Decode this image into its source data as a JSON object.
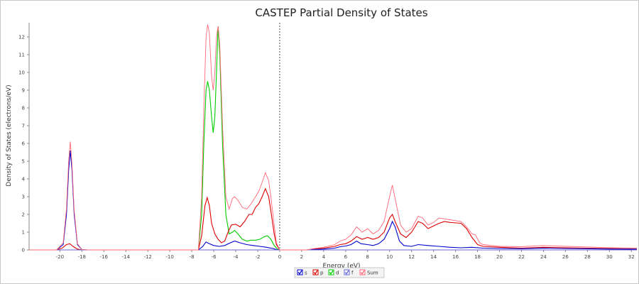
{
  "chart_data": {
    "type": "line",
    "title": "CASTEP Partial  Density of States",
    "xlabel": "Energy (eV)",
    "ylabel": "Density of States (electrons/eV)",
    "xlim": [
      -22.8,
      32.5
    ],
    "ylim": [
      0,
      12.8
    ],
    "xticks": [
      "-20",
      "-18",
      "-16",
      "-14",
      "-12",
      "-10",
      "-8",
      "-6",
      "-4",
      "-2",
      "0",
      "2",
      "4",
      "6",
      "8",
      "10",
      "12",
      "14",
      "16",
      "18",
      "20",
      "22",
      "24",
      "26",
      "28",
      "30",
      "32"
    ],
    "yticks": [
      "0",
      "1",
      "2",
      "3",
      "4",
      "5",
      "6",
      "7",
      "8",
      "9",
      "10",
      "11",
      "12"
    ],
    "fermi_level": 0,
    "grid": false,
    "legend_position": "bottom-center",
    "series": [
      {
        "name": "s",
        "color": "#0000cc",
        "points": [
          [
            -22.8,
            0
          ],
          [
            -20.3,
            0
          ],
          [
            -19.7,
            0.3
          ],
          [
            -19.4,
            2.0
          ],
          [
            -19.2,
            4.5
          ],
          [
            -19.05,
            5.6
          ],
          [
            -18.9,
            4.5
          ],
          [
            -18.7,
            2.0
          ],
          [
            -18.4,
            0.3
          ],
          [
            -18.0,
            0.02
          ],
          [
            -17.5,
            0
          ],
          [
            -7.4,
            0
          ],
          [
            -7.0,
            0.2
          ],
          [
            -6.7,
            0.45
          ],
          [
            -6.4,
            0.35
          ],
          [
            -6.0,
            0.25
          ],
          [
            -5.5,
            0.2
          ],
          [
            -5.0,
            0.25
          ],
          [
            -4.5,
            0.4
          ],
          [
            -4.1,
            0.5
          ],
          [
            -3.6,
            0.4
          ],
          [
            -3.0,
            0.3
          ],
          [
            -2.4,
            0.25
          ],
          [
            -1.8,
            0.2
          ],
          [
            -1.2,
            0.15
          ],
          [
            -0.6,
            0.08
          ],
          [
            -0.3,
            0.02
          ],
          [
            0,
            0
          ],
          [
            2.5,
            0
          ],
          [
            3.0,
            0.02
          ],
          [
            4.0,
            0.05
          ],
          [
            5.0,
            0.1
          ],
          [
            5.5,
            0.18
          ],
          [
            6.0,
            0.22
          ],
          [
            6.5,
            0.3
          ],
          [
            7.0,
            0.5
          ],
          [
            7.4,
            0.35
          ],
          [
            8.0,
            0.3
          ],
          [
            8.5,
            0.25
          ],
          [
            9.0,
            0.35
          ],
          [
            9.5,
            0.6
          ],
          [
            10.0,
            1.2
          ],
          [
            10.25,
            1.6
          ],
          [
            10.5,
            1.3
          ],
          [
            10.9,
            0.5
          ],
          [
            11.3,
            0.25
          ],
          [
            12.0,
            0.2
          ],
          [
            12.6,
            0.3
          ],
          [
            13.5,
            0.25
          ],
          [
            14.5,
            0.2
          ],
          [
            15.5,
            0.15
          ],
          [
            16.5,
            0.12
          ],
          [
            17.5,
            0.15
          ],
          [
            18.5,
            0.1
          ],
          [
            20,
            0.08
          ],
          [
            22,
            0.07
          ],
          [
            24,
            0.1
          ],
          [
            26,
            0.08
          ],
          [
            28,
            0.07
          ],
          [
            30,
            0.05
          ],
          [
            32.5,
            0.04
          ]
        ]
      },
      {
        "name": "p",
        "color": "#dd0000",
        "points": [
          [
            -22.8,
            0
          ],
          [
            -20.3,
            0
          ],
          [
            -19.8,
            0.1
          ],
          [
            -19.4,
            0.3
          ],
          [
            -19.1,
            0.35
          ],
          [
            -18.8,
            0.2
          ],
          [
            -18.4,
            0.05
          ],
          [
            -18.0,
            0
          ],
          [
            -7.4,
            0
          ],
          [
            -7.1,
            0.8
          ],
          [
            -6.8,
            2.5
          ],
          [
            -6.6,
            2.95
          ],
          [
            -6.4,
            2.5
          ],
          [
            -6.2,
            1.5
          ],
          [
            -5.9,
            0.9
          ],
          [
            -5.6,
            0.6
          ],
          [
            -5.3,
            0.4
          ],
          [
            -5.0,
            0.5
          ],
          [
            -4.7,
            1.0
          ],
          [
            -4.4,
            1.4
          ],
          [
            -4.0,
            1.45
          ],
          [
            -3.6,
            1.3
          ],
          [
            -3.2,
            1.6
          ],
          [
            -2.8,
            2.0
          ],
          [
            -2.5,
            2.0
          ],
          [
            -2.2,
            2.4
          ],
          [
            -1.9,
            2.6
          ],
          [
            -1.6,
            3.0
          ],
          [
            -1.3,
            3.45
          ],
          [
            -1.0,
            3.0
          ],
          [
            -0.8,
            2.2
          ],
          [
            -0.5,
            0.9
          ],
          [
            -0.3,
            0.3
          ],
          [
            0,
            0
          ],
          [
            2.5,
            0
          ],
          [
            3.0,
            0.05
          ],
          [
            4.0,
            0.1
          ],
          [
            5.0,
            0.2
          ],
          [
            5.5,
            0.3
          ],
          [
            6.0,
            0.35
          ],
          [
            6.5,
            0.5
          ],
          [
            7.0,
            0.75
          ],
          [
            7.5,
            0.6
          ],
          [
            8.0,
            0.7
          ],
          [
            8.5,
            0.6
          ],
          [
            9.0,
            0.7
          ],
          [
            9.5,
            1.0
          ],
          [
            10.0,
            1.8
          ],
          [
            10.25,
            2.0
          ],
          [
            10.5,
            1.6
          ],
          [
            11.0,
            0.9
          ],
          [
            11.5,
            0.7
          ],
          [
            12.0,
            1.0
          ],
          [
            12.6,
            1.6
          ],
          [
            13.0,
            1.5
          ],
          [
            13.5,
            1.2
          ],
          [
            14.0,
            1.35
          ],
          [
            14.5,
            1.5
          ],
          [
            15.0,
            1.6
          ],
          [
            15.5,
            1.55
          ],
          [
            16.5,
            1.5
          ],
          [
            17.0,
            1.2
          ],
          [
            17.5,
            0.7
          ],
          [
            18.0,
            0.3
          ],
          [
            18.5,
            0.2
          ],
          [
            20,
            0.15
          ],
          [
            22,
            0.1
          ],
          [
            24,
            0.15
          ],
          [
            26,
            0.12
          ],
          [
            28,
            0.1
          ],
          [
            30,
            0.08
          ],
          [
            32.5,
            0.05
          ]
        ]
      },
      {
        "name": "d",
        "color": "#00cc00",
        "points": [
          [
            -22.8,
            0
          ],
          [
            -7.4,
            0
          ],
          [
            -7.1,
            2.0
          ],
          [
            -6.9,
            6.0
          ],
          [
            -6.7,
            9.0
          ],
          [
            -6.55,
            9.5
          ],
          [
            -6.4,
            9.0
          ],
          [
            -6.2,
            7.5
          ],
          [
            -6.05,
            6.6
          ],
          [
            -5.9,
            7.5
          ],
          [
            -5.75,
            10.0
          ],
          [
            -5.6,
            12.6
          ],
          [
            -5.45,
            11.0
          ],
          [
            -5.2,
            6.0
          ],
          [
            -4.9,
            2.0
          ],
          [
            -4.6,
            0.9
          ],
          [
            -4.3,
            1.0
          ],
          [
            -4.1,
            1.1
          ],
          [
            -3.8,
            0.9
          ],
          [
            -3.4,
            0.6
          ],
          [
            -3.0,
            0.5
          ],
          [
            -2.6,
            0.55
          ],
          [
            -2.2,
            0.55
          ],
          [
            -1.8,
            0.6
          ],
          [
            -1.4,
            0.75
          ],
          [
            -1.1,
            0.8
          ],
          [
            -0.8,
            0.6
          ],
          [
            -0.5,
            0.25
          ],
          [
            -0.2,
            0.05
          ],
          [
            0,
            0
          ],
          [
            32.5,
            0
          ]
        ]
      },
      {
        "name": "f",
        "color": "#6666dd",
        "points": [
          [
            -22.8,
            0
          ],
          [
            32.5,
            0
          ]
        ]
      },
      {
        "name": "Sum",
        "color": "#ff6677",
        "points": [
          [
            -22.8,
            0
          ],
          [
            -20.3,
            0
          ],
          [
            -19.7,
            0.4
          ],
          [
            -19.4,
            2.3
          ],
          [
            -19.2,
            5.0
          ],
          [
            -19.05,
            6.1
          ],
          [
            -18.9,
            4.8
          ],
          [
            -18.7,
            2.2
          ],
          [
            -18.4,
            0.35
          ],
          [
            -18.0,
            0.02
          ],
          [
            -17.5,
            0
          ],
          [
            -7.4,
            0
          ],
          [
            -7.1,
            3.0
          ],
          [
            -6.9,
            8.0
          ],
          [
            -6.7,
            12.0
          ],
          [
            -6.55,
            12.7
          ],
          [
            -6.4,
            12.2
          ],
          [
            -6.2,
            9.8
          ],
          [
            -6.05,
            9.0
          ],
          [
            -5.9,
            10.0
          ],
          [
            -5.75,
            12.0
          ],
          [
            -5.6,
            12.6
          ],
          [
            -5.45,
            11.5
          ],
          [
            -5.2,
            7.0
          ],
          [
            -4.9,
            3.0
          ],
          [
            -4.6,
            2.3
          ],
          [
            -4.3,
            2.9
          ],
          [
            -4.1,
            3.0
          ],
          [
            -3.8,
            2.8
          ],
          [
            -3.4,
            2.4
          ],
          [
            -3.0,
            2.3
          ],
          [
            -2.6,
            2.6
          ],
          [
            -2.2,
            3.0
          ],
          [
            -1.9,
            3.3
          ],
          [
            -1.6,
            3.8
          ],
          [
            -1.3,
            4.35
          ],
          [
            -1.0,
            3.9
          ],
          [
            -0.8,
            3.0
          ],
          [
            -0.5,
            1.4
          ],
          [
            -0.3,
            0.4
          ],
          [
            0,
            0
          ],
          [
            2.5,
            0
          ],
          [
            3.0,
            0.07
          ],
          [
            4.0,
            0.15
          ],
          [
            5.0,
            0.3
          ],
          [
            5.5,
            0.5
          ],
          [
            6.0,
            0.6
          ],
          [
            6.5,
            0.85
          ],
          [
            7.0,
            1.3
          ],
          [
            7.5,
            1.0
          ],
          [
            8.0,
            1.2
          ],
          [
            8.5,
            0.9
          ],
          [
            9.0,
            1.1
          ],
          [
            9.5,
            1.6
          ],
          [
            10.0,
            3.0
          ],
          [
            10.25,
            3.65
          ],
          [
            10.5,
            2.9
          ],
          [
            11.0,
            1.4
          ],
          [
            11.5,
            1.0
          ],
          [
            12.0,
            1.2
          ],
          [
            12.6,
            1.9
          ],
          [
            13.0,
            1.8
          ],
          [
            13.5,
            1.4
          ],
          [
            14.0,
            1.55
          ],
          [
            14.5,
            1.8
          ],
          [
            15.0,
            1.75
          ],
          [
            15.5,
            1.7
          ],
          [
            16.5,
            1.6
          ],
          [
            17.0,
            1.3
          ],
          [
            17.5,
            0.9
          ],
          [
            17.8,
            0.85
          ],
          [
            18.2,
            0.4
          ],
          [
            18.5,
            0.3
          ],
          [
            20,
            0.2
          ],
          [
            22,
            0.18
          ],
          [
            24,
            0.25
          ],
          [
            26,
            0.2
          ],
          [
            28,
            0.17
          ],
          [
            30,
            0.13
          ],
          [
            32.5,
            0.1
          ]
        ]
      }
    ]
  }
}
